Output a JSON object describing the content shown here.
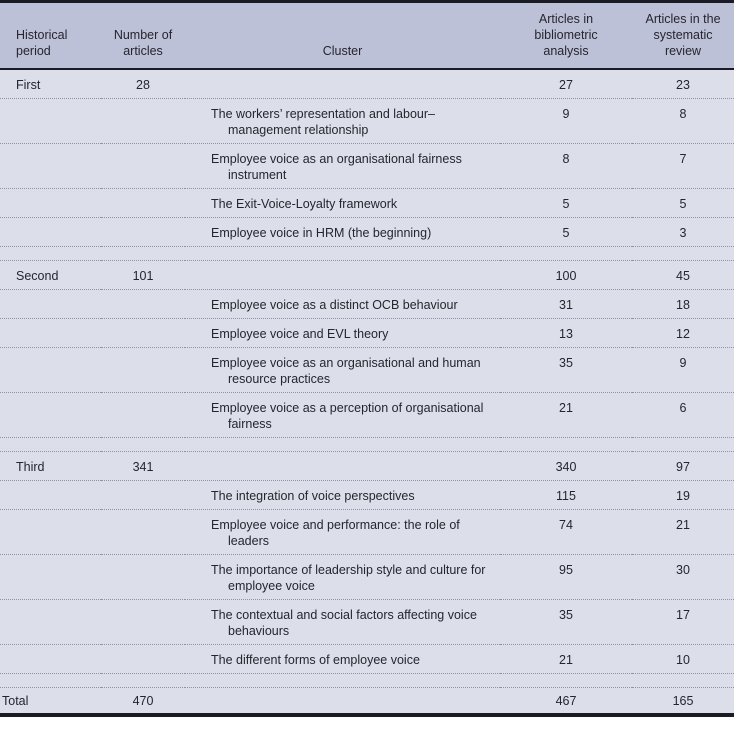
{
  "colors": {
    "header_bg": "#bdc1d7",
    "body_bg": "#dcdfe9",
    "rule_dark": "#1b1b26",
    "dotted_line": "#8d92a6",
    "text": "#25252e"
  },
  "header": {
    "period": "Historical period",
    "number": "Number of articles",
    "cluster": "Cluster",
    "bibliometric": "Articles in bibliometric analysis",
    "systematic": "Articles in the systematic review"
  },
  "rows": [
    {
      "type": "data",
      "period": "First",
      "number": "28",
      "cluster": "",
      "bibliometric": "27",
      "systematic": "23"
    },
    {
      "type": "data",
      "period": "",
      "number": "",
      "cluster": "The workers’ representation and labour–management relationship",
      "bibliometric": "9",
      "systematic": "8"
    },
    {
      "type": "data",
      "period": "",
      "number": "",
      "cluster": "Employee voice as an organisational fairness instrument",
      "bibliometric": "8",
      "systematic": "7"
    },
    {
      "type": "data",
      "period": "",
      "number": "",
      "cluster": "The Exit-Voice-Loyalty framework",
      "bibliometric": "5",
      "systematic": "5"
    },
    {
      "type": "data",
      "period": "",
      "number": "",
      "cluster": "Employee voice in HRM (the beginning)",
      "bibliometric": "5",
      "systematic": "3"
    },
    {
      "type": "spacer"
    },
    {
      "type": "data",
      "period": "Second",
      "number": "101",
      "cluster": "",
      "bibliometric": "100",
      "systematic": "45"
    },
    {
      "type": "data",
      "period": "",
      "number": "",
      "cluster": "Employee voice as a distinct OCB behaviour",
      "bibliometric": "31",
      "systematic": "18"
    },
    {
      "type": "data",
      "period": "",
      "number": "",
      "cluster": "Employee voice and EVL theory",
      "bibliometric": "13",
      "systematic": "12"
    },
    {
      "type": "data",
      "period": "",
      "number": "",
      "cluster": "Employee voice as an organisational and human resource practices",
      "bibliometric": "35",
      "systematic": "9"
    },
    {
      "type": "data",
      "period": "",
      "number": "",
      "cluster": "Employee voice as a perception of organisational fairness",
      "bibliometric": "21",
      "systematic": "6"
    },
    {
      "type": "spacer"
    },
    {
      "type": "data",
      "period": "Third",
      "number": "341",
      "cluster": "",
      "bibliometric": "340",
      "systematic": "97"
    },
    {
      "type": "data",
      "period": "",
      "number": "",
      "cluster": "The integration of voice perspectives",
      "bibliometric": "115",
      "systematic": "19"
    },
    {
      "type": "data",
      "period": "",
      "number": "",
      "cluster": "Employee voice and performance: the role of leaders",
      "bibliometric": "74",
      "systematic": "21"
    },
    {
      "type": "data",
      "period": "",
      "number": "",
      "cluster": "The importance of leadership style and culture for employee voice",
      "bibliometric": "95",
      "systematic": "30"
    },
    {
      "type": "data",
      "period": "",
      "number": "",
      "cluster": "The contextual and social factors affecting voice behaviours",
      "bibliometric": "35",
      "systematic": "17"
    },
    {
      "type": "data",
      "period": "",
      "number": "",
      "cluster": "The different forms of employee voice",
      "bibliometric": "21",
      "systematic": "10"
    },
    {
      "type": "spacer"
    },
    {
      "type": "total",
      "period": "Total",
      "number": "470",
      "cluster": "",
      "bibliometric": "467",
      "systematic": "165"
    }
  ]
}
